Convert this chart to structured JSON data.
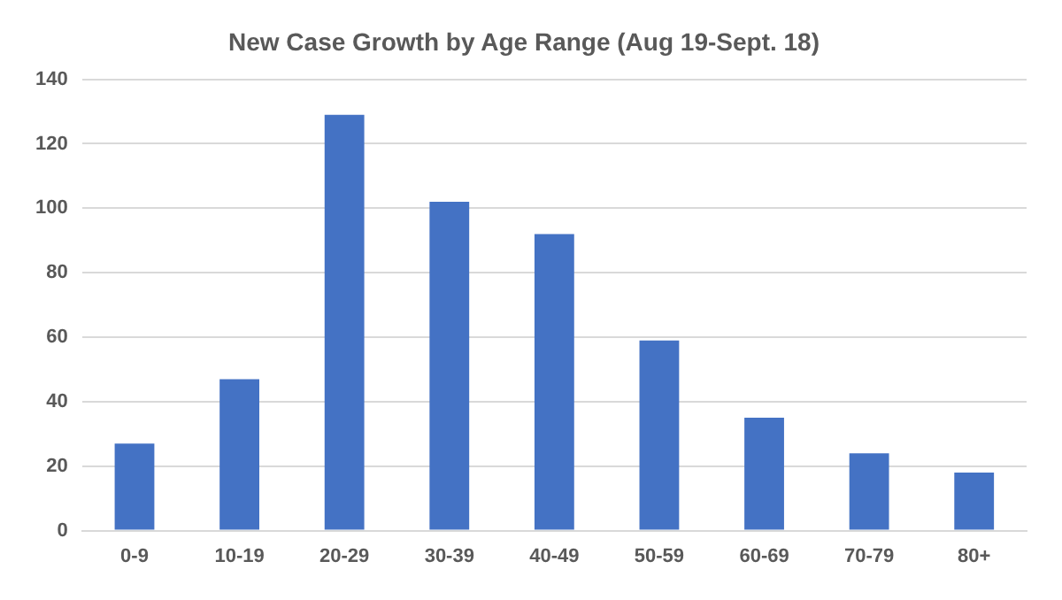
{
  "chart_data": {
    "type": "bar",
    "title": "New Case Growth by Age Range (Aug 19-Sept. 18)",
    "categories": [
      "0-9",
      "10-19",
      "20-29",
      "30-39",
      "40-49",
      "50-59",
      "60-69",
      "70-79",
      "80+"
    ],
    "values": [
      27,
      47,
      129,
      102,
      92,
      59,
      35,
      24,
      18
    ],
    "color": "#4472c4",
    "ylim": [
      0,
      140
    ],
    "yticks": [
      0,
      20,
      40,
      60,
      80,
      100,
      120,
      140
    ],
    "grid": "y"
  }
}
